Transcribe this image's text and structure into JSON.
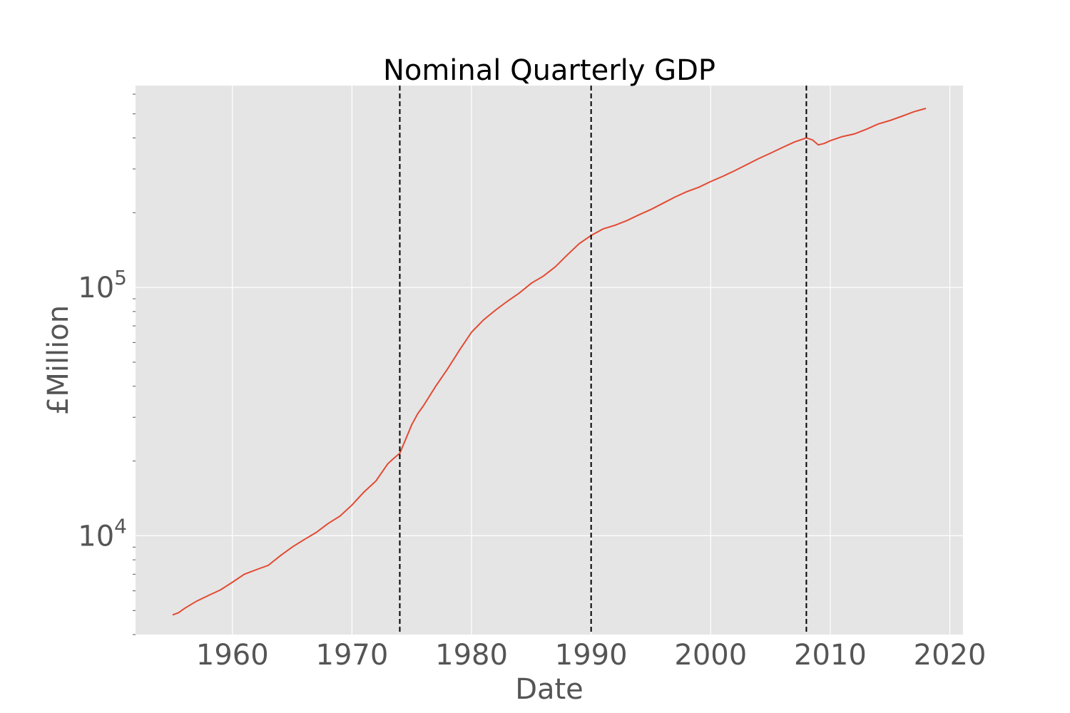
{
  "chart_data": {
    "type": "line",
    "title": "Nominal Quarterly GDP",
    "xlabel": "Date",
    "ylabel": "£Million",
    "x_scale": "linear",
    "y_scale": "log",
    "xlim": [
      1951.9,
      2021.1
    ],
    "ylim": [
      4000,
      650000
    ],
    "x_ticks": [
      1960,
      1970,
      1980,
      1990,
      2000,
      2010,
      2020
    ],
    "y_ticks_major": [
      {
        "value": 10000,
        "base": "10",
        "exp": "4"
      },
      {
        "value": 100000,
        "base": "10",
        "exp": "5"
      }
    ],
    "grid": true,
    "legend": "none",
    "vertical_lines": [
      1974,
      1990,
      2008
    ],
    "vline_style": "dashed",
    "series": [
      {
        "color": "#E24A33",
        "x": [
          1955.0,
          1955.5,
          1956,
          1957,
          1958,
          1959,
          1960,
          1961,
          1962,
          1963,
          1964,
          1965,
          1966,
          1967,
          1968,
          1969,
          1970,
          1971,
          1972,
          1973,
          1973.5,
          1974,
          1974.5,
          1975,
          1975.5,
          1976,
          1977,
          1978,
          1979,
          1980,
          1981,
          1982,
          1983,
          1984,
          1985,
          1986,
          1987,
          1988,
          1989,
          1990,
          1991,
          1992,
          1993,
          1994,
          1995,
          1996,
          1997,
          1998,
          1999,
          2000,
          2001,
          2002,
          2003,
          2004,
          2005,
          2006,
          2007,
          2008,
          2008.5,
          2009,
          2009.5,
          2010,
          2011,
          2012,
          2013,
          2014,
          2015,
          2016,
          2017,
          2018
        ],
        "y": [
          4800,
          4900,
          5100,
          5450,
          5750,
          6050,
          6500,
          7000,
          7300,
          7600,
          8300,
          9000,
          9650,
          10300,
          11200,
          12000,
          13300,
          15000,
          16600,
          19500,
          20500,
          21500,
          24500,
          28000,
          31000,
          33500,
          40000,
          47000,
          56000,
          66000,
          74000,
          81000,
          88000,
          95000,
          104000,
          111000,
          121000,
          135000,
          150000,
          162000,
          172000,
          178000,
          186000,
          196000,
          206000,
          218000,
          231000,
          243000,
          253000,
          267000,
          280000,
          295000,
          312000,
          330000,
          347000,
          366000,
          385000,
          400000,
          393000,
          375000,
          380000,
          390000,
          405000,
          415000,
          433000,
          455000,
          470000,
          489000,
          510000,
          526000
        ]
      }
    ]
  }
}
